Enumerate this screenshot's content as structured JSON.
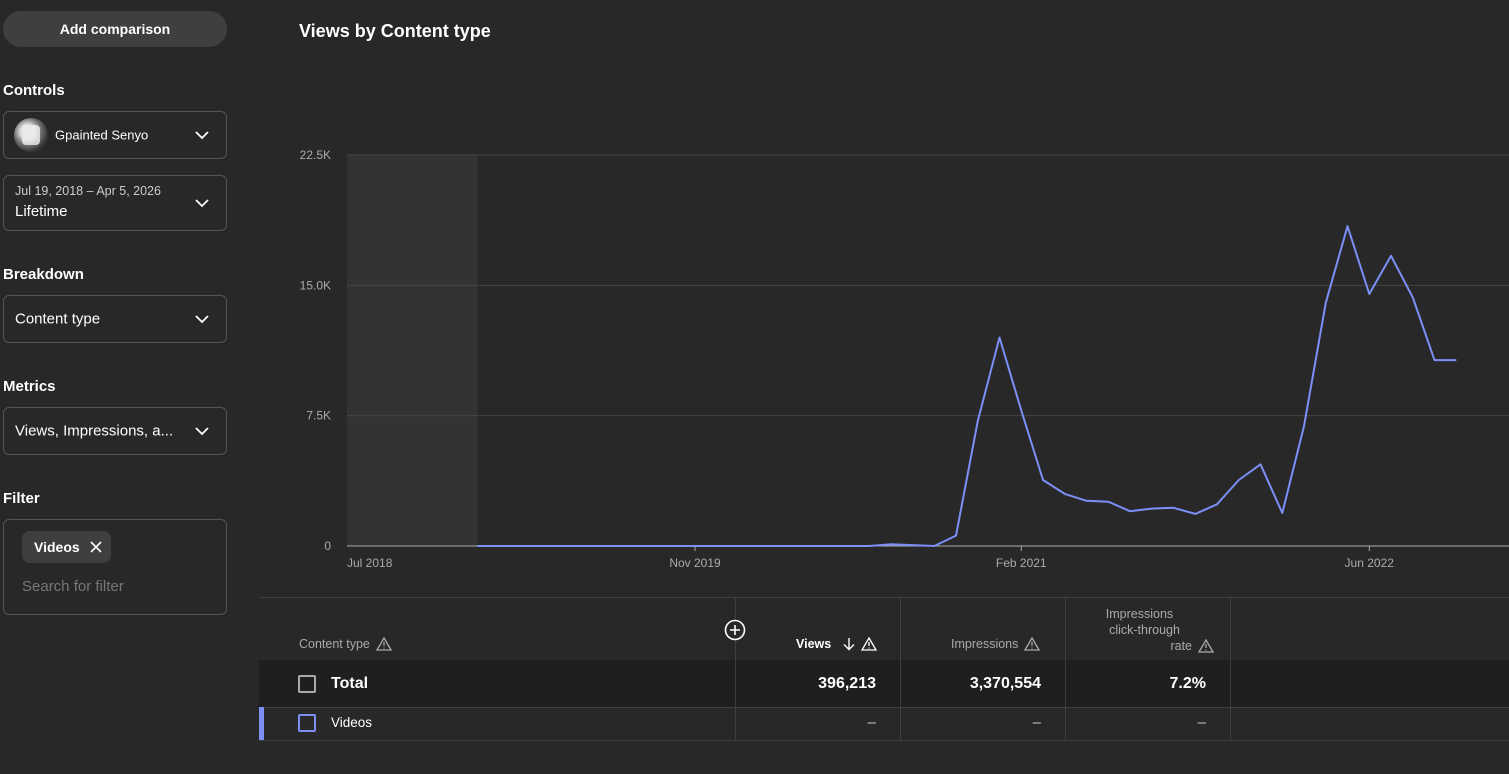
{
  "sidebar": {
    "add_comparison": "Add comparison",
    "controls_label": "Controls",
    "channel_name": "Gpainted Senyo",
    "date_range": "Jul 19, 2018 – Apr 5, 2026",
    "date_preset": "Lifetime",
    "breakdown_label": "Breakdown",
    "breakdown_value": "Content type",
    "metrics_label": "Metrics",
    "metrics_value": "Views, Impressions, a...",
    "filter_label": "Filter",
    "filter_chip": "Videos",
    "filter_placeholder": "Search for filter"
  },
  "main": {
    "chart_title": "Views by Content type"
  },
  "chart_data": {
    "type": "line",
    "title": "Views by Content type",
    "y_ticks": [
      "22.5K",
      "15.0K",
      "7.5K",
      "0"
    ],
    "x_ticks": [
      "Jul 2018",
      "Nov 2019",
      "Feb 2021",
      "Jun 2022"
    ],
    "ylim": [
      0,
      22500
    ],
    "grid": true,
    "line_color": "#7b8ff7",
    "shaded_period": "Jul 2018 – Jan 2019",
    "series": [
      {
        "x": [
          "2019-01",
          "2019-02",
          "2019-03",
          "2019-04",
          "2019-05",
          "2019-06",
          "2019-07",
          "2019-08",
          "2019-09",
          "2019-10",
          "2019-11",
          "2019-12",
          "2020-01",
          "2020-02",
          "2020-03",
          "2020-04",
          "2020-05",
          "2020-06",
          "2020-07",
          "2020-08",
          "2020-09",
          "2020-10",
          "2020-11",
          "2020-12",
          "2021-01",
          "2021-02",
          "2021-03",
          "2021-04",
          "2021-05",
          "2021-06",
          "2021-07",
          "2021-08",
          "2021-09",
          "2021-10",
          "2021-11",
          "2021-12",
          "2022-01",
          "2022-02",
          "2022-03",
          "2022-04",
          "2022-05",
          "2022-06",
          "2022-07",
          "2022-08",
          "2022-09",
          "2022-10"
        ],
        "values": [
          0,
          0,
          0,
          0,
          0,
          0,
          0,
          0,
          0,
          0,
          0,
          0,
          0,
          0,
          0,
          0,
          0,
          0,
          0,
          100,
          50,
          0,
          600,
          7200,
          12000,
          7800,
          3800,
          3000,
          2600,
          2550,
          2000,
          2150,
          2200,
          1850,
          2400,
          3800,
          4700,
          1900,
          6900,
          14000,
          18400,
          14500,
          16700,
          14300,
          10700,
          10700
        ]
      }
    ]
  },
  "table": {
    "col_content_type": "Content type",
    "col_views": "Views",
    "col_impressions": "Impressions",
    "col_ctr_1": "Impressions",
    "col_ctr_2": "click-through",
    "col_ctr_3": "rate",
    "total_label": "Total",
    "total_views": "396,213",
    "total_impressions": "3,370,554",
    "total_ctr": "7.2%",
    "row_label": "Videos",
    "row_views": "–",
    "row_impressions": "–",
    "row_ctr": "–"
  }
}
